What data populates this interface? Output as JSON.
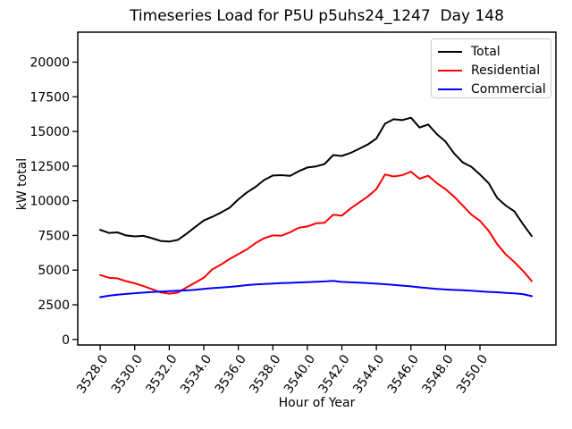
{
  "figure": {
    "background": "#ffffff"
  },
  "chart_data": {
    "type": "line",
    "title": "Timeseries Load for P5U p5uhs24_1247  Day 148",
    "xlabel": "Hour of Year",
    "ylabel": "kW total",
    "grid": false,
    "legend_position": "upper right",
    "xlim": [
      3526.7,
      3554.4
    ],
    "ylim": [
      -400,
      22160
    ],
    "x_tick_values": [
      3528,
      3530,
      3532,
      3534,
      3536,
      3538,
      3540,
      3542,
      3544,
      3546,
      3548,
      3550
    ],
    "x_tick_labels": [
      "3528.0",
      "3530.0",
      "3532.0",
      "3534.0",
      "3536.0",
      "3538.0",
      "3540.0",
      "3542.0",
      "3544.0",
      "3546.0",
      "3548.0",
      "3550.0"
    ],
    "y_tick_values": [
      0,
      2500,
      5000,
      7500,
      10000,
      12500,
      15000,
      17500,
      20000
    ],
    "y_tick_labels": [
      "0",
      "2500",
      "5000",
      "7500",
      "10000",
      "12500",
      "15000",
      "17500",
      "20000"
    ],
    "x_start": 3528.0,
    "x_step": 0.5,
    "series": [
      {
        "name": "Total",
        "color": "#000000",
        "values": [
          7900,
          7680,
          7720,
          7500,
          7430,
          7470,
          7300,
          7100,
          7060,
          7180,
          7620,
          8100,
          8580,
          8840,
          9150,
          9500,
          10100,
          10600,
          11000,
          11500,
          11820,
          11850,
          11800,
          12130,
          12400,
          12480,
          12650,
          13300,
          13230,
          13450,
          13750,
          14060,
          14490,
          15560,
          15880,
          15820,
          15990,
          15280,
          15500,
          14810,
          14280,
          13420,
          12770,
          12450,
          11900,
          11270,
          10200,
          9650,
          9230,
          8300,
          7450
        ]
      },
      {
        "name": "Residential",
        "color": "#ff0000",
        "values": [
          4650,
          4450,
          4400,
          4200,
          4050,
          3850,
          3620,
          3400,
          3300,
          3380,
          3750,
          4100,
          4450,
          5050,
          5400,
          5800,
          6150,
          6500,
          6950,
          7300,
          7500,
          7480,
          7730,
          8050,
          8150,
          8370,
          8420,
          9000,
          8930,
          9445,
          9875,
          10305,
          10840,
          11900,
          11750,
          11850,
          12100,
          11590,
          11810,
          11270,
          10840,
          10300,
          9660,
          9000,
          8550,
          7840,
          6870,
          6120,
          5575,
          4935,
          4200
        ]
      },
      {
        "name": "Commercial",
        "color": "#0000ff",
        "values": [
          3050,
          3150,
          3230,
          3280,
          3330,
          3380,
          3420,
          3450,
          3480,
          3510,
          3540,
          3580,
          3650,
          3700,
          3740,
          3790,
          3850,
          3920,
          3970,
          4000,
          4030,
          4060,
          4080,
          4110,
          4130,
          4160,
          4180,
          4230,
          4150,
          4120,
          4090,
          4060,
          4020,
          3980,
          3930,
          3880,
          3830,
          3760,
          3700,
          3650,
          3600,
          3570,
          3550,
          3520,
          3470,
          3430,
          3400,
          3360,
          3320,
          3270,
          3120
        ]
      }
    ]
  }
}
